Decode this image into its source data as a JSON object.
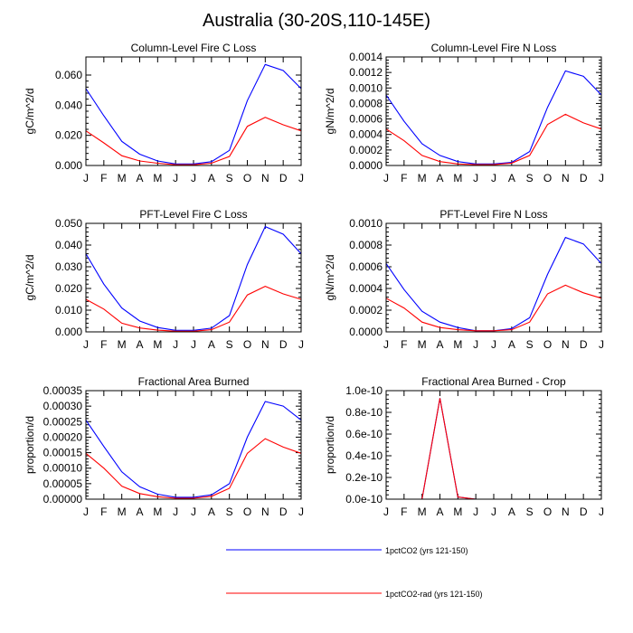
{
  "title": "Australia (30-20S,110-145E)",
  "chart_data": [
    {
      "type": "line",
      "title": "Column-Level Fire C Loss",
      "ylabel": "gC/m^2/d",
      "categories": [
        "J",
        "F",
        "M",
        "A",
        "M",
        "J",
        "J",
        "A",
        "S",
        "O",
        "N",
        "D",
        "J"
      ],
      "ylim": [
        0,
        0.072
      ],
      "yticks": [
        0,
        0.02,
        0.04,
        0.06
      ],
      "yticklabels": [
        "0.000",
        "0.020",
        "0.040",
        "0.060"
      ],
      "series": [
        {
          "name": "1pctCO2 (yrs 121-150)",
          "color": "#0000ff",
          "values": [
            0.051,
            0.033,
            0.016,
            0.0075,
            0.003,
            0.001,
            0.001,
            0.0025,
            0.01,
            0.043,
            0.067,
            0.063,
            0.051
          ]
        },
        {
          "name": "1pctCO2-rad (yrs 121-150)",
          "color": "#ff0000",
          "values": [
            0.023,
            0.015,
            0.0065,
            0.003,
            0.0015,
            0.0005,
            0.0005,
            0.0015,
            0.006,
            0.026,
            0.032,
            0.027,
            0.023
          ]
        }
      ]
    },
    {
      "type": "line",
      "title": "Column-Level Fire N Loss",
      "ylabel": "gN/m^2/d",
      "categories": [
        "J",
        "F",
        "M",
        "A",
        "M",
        "J",
        "J",
        "A",
        "S",
        "O",
        "N",
        "D",
        "J"
      ],
      "ylim": [
        0,
        0.0014
      ],
      "yticks": [
        0,
        0.0002,
        0.0004,
        0.0006,
        0.0008,
        0.001,
        0.0012,
        0.0014
      ],
      "yticklabels": [
        "0.0000",
        "0.0002",
        "0.0004",
        "0.0006",
        "0.0008",
        "0.0010",
        "0.0012",
        "0.0014"
      ],
      "series": [
        {
          "name": "1pctCO2 (yrs 121-150)",
          "color": "#0000ff",
          "values": [
            0.00091,
            0.00057,
            0.00028,
            0.00013,
            5e-05,
            2e-05,
            2e-05,
            4e-05,
            0.00018,
            0.00075,
            0.00122,
            0.00115,
            0.00091
          ]
        },
        {
          "name": "1pctCO2-rad (yrs 121-150)",
          "color": "#ff0000",
          "values": [
            0.00047,
            0.00032,
            0.00013,
            5e-05,
            2e-05,
            1e-05,
            1e-05,
            3e-05,
            0.00013,
            0.00053,
            0.00066,
            0.00055,
            0.00047
          ]
        }
      ]
    },
    {
      "type": "line",
      "title": "PFT-Level Fire C Loss",
      "ylabel": "gC/m^2/d",
      "categories": [
        "J",
        "F",
        "M",
        "A",
        "M",
        "J",
        "J",
        "A",
        "S",
        "O",
        "N",
        "D",
        "J"
      ],
      "ylim": [
        0,
        0.05
      ],
      "yticks": [
        0,
        0.01,
        0.02,
        0.03,
        0.04,
        0.05
      ],
      "yticklabels": [
        "0.000",
        "0.010",
        "0.020",
        "0.030",
        "0.040",
        "0.050"
      ],
      "series": [
        {
          "name": "1pctCO2 (yrs 121-150)",
          "color": "#0000ff",
          "values": [
            0.036,
            0.022,
            0.011,
            0.005,
            0.002,
            0.0007,
            0.0007,
            0.0017,
            0.0075,
            0.031,
            0.0485,
            0.045,
            0.036
          ]
        },
        {
          "name": "1pctCO2-rad (yrs 121-150)",
          "color": "#ff0000",
          "values": [
            0.015,
            0.0105,
            0.004,
            0.0018,
            0.0008,
            0.0003,
            0.0003,
            0.001,
            0.0045,
            0.017,
            0.021,
            0.0175,
            0.015
          ]
        }
      ]
    },
    {
      "type": "line",
      "title": "PFT-Level Fire N Loss",
      "ylabel": "gN/m^2/d",
      "categories": [
        "J",
        "F",
        "M",
        "A",
        "M",
        "J",
        "J",
        "A",
        "S",
        "O",
        "N",
        "D",
        "J"
      ],
      "ylim": [
        0,
        0.001
      ],
      "yticks": [
        0,
        0.0002,
        0.0004,
        0.0006,
        0.0008,
        0.001
      ],
      "yticklabels": [
        "0.0000",
        "0.0002",
        "0.0004",
        "0.0006",
        "0.0008",
        "0.0010"
      ],
      "series": [
        {
          "name": "1pctCO2 (yrs 121-150)",
          "color": "#0000ff",
          "values": [
            0.00063,
            0.00039,
            0.00019,
            9e-05,
            4e-05,
            1e-05,
            1e-05,
            3e-05,
            0.00013,
            0.00053,
            0.00087,
            0.00081,
            0.00063
          ]
        },
        {
          "name": "1pctCO2-rad (yrs 121-150)",
          "color": "#ff0000",
          "values": [
            0.00031,
            0.00022,
            9e-05,
            4e-05,
            2e-05,
            1e-05,
            1e-05,
            2e-05,
            9e-05,
            0.00035,
            0.00043,
            0.00036,
            0.00031
          ]
        }
      ]
    },
    {
      "type": "line",
      "title": "Fractional Area Burned",
      "ylabel": "proportion/d",
      "categories": [
        "J",
        "F",
        "M",
        "A",
        "M",
        "J",
        "J",
        "A",
        "S",
        "O",
        "N",
        "D",
        "J"
      ],
      "ylim": [
        0,
        0.00035
      ],
      "yticks": [
        0,
        5e-05,
        0.0001,
        0.00015,
        0.0002,
        0.00025,
        0.0003,
        0.00035
      ],
      "yticklabels": [
        "0.00000",
        "0.00005",
        "0.00010",
        "0.00015",
        "0.00020",
        "0.00025",
        "0.00030",
        "0.00035"
      ],
      "series": [
        {
          "name": "1pctCO2 (yrs 121-150)",
          "color": "#0000ff",
          "values": [
            0.000255,
            0.00017,
            8.8e-05,
            4e-05,
            1.6e-05,
            6e-06,
            6e-06,
            1.4e-05,
            5e-05,
            0.0002,
            0.000315,
            0.0003,
            0.000255
          ]
        },
        {
          "name": "1pctCO2-rad (yrs 121-150)",
          "color": "#ff0000",
          "values": [
            0.000148,
            0.0001,
            4.2e-05,
            1.8e-05,
            8e-06,
            3e-06,
            3e-06,
            9e-06,
            3.5e-05,
            0.000148,
            0.000195,
            0.000168,
            0.000148
          ]
        }
      ]
    },
    {
      "type": "line",
      "title": "Fractional Area Burned - Crop",
      "ylabel": "proportion/d",
      "categories": [
        "J",
        "F",
        "M",
        "A",
        "M",
        "J",
        "J",
        "A",
        "S",
        "O",
        "N",
        "D",
        "J"
      ],
      "ylim": [
        0,
        1e-10
      ],
      "yticks": [
        0,
        2e-11,
        4e-11,
        6e-11,
        8e-11,
        1e-10
      ],
      "yticklabels": [
        "0.0e-10",
        "0.2e-10",
        "0.4e-10",
        "0.6e-10",
        "0.8e-10",
        "1.0e-10"
      ],
      "series": [
        {
          "name": "1pctCO2 (yrs 121-150)",
          "color": "#0000ff",
          "values": [
            0,
            0,
            0,
            9.3e-11,
            2e-12,
            0,
            0,
            0,
            0,
            0,
            0,
            0,
            0
          ]
        },
        {
          "name": "1pctCO2-rad (yrs 121-150)",
          "color": "#ff0000",
          "values": [
            0,
            0,
            0,
            9.3e-11,
            2e-12,
            0,
            0,
            0,
            0,
            0,
            0,
            0,
            0
          ]
        }
      ]
    }
  ],
  "legend": [
    {
      "label": "1pctCO2 (yrs 121-150)",
      "color": "#0000ff"
    },
    {
      "label": "1pctCO2-rad (yrs 121-150)",
      "color": "#ff0000"
    }
  ]
}
